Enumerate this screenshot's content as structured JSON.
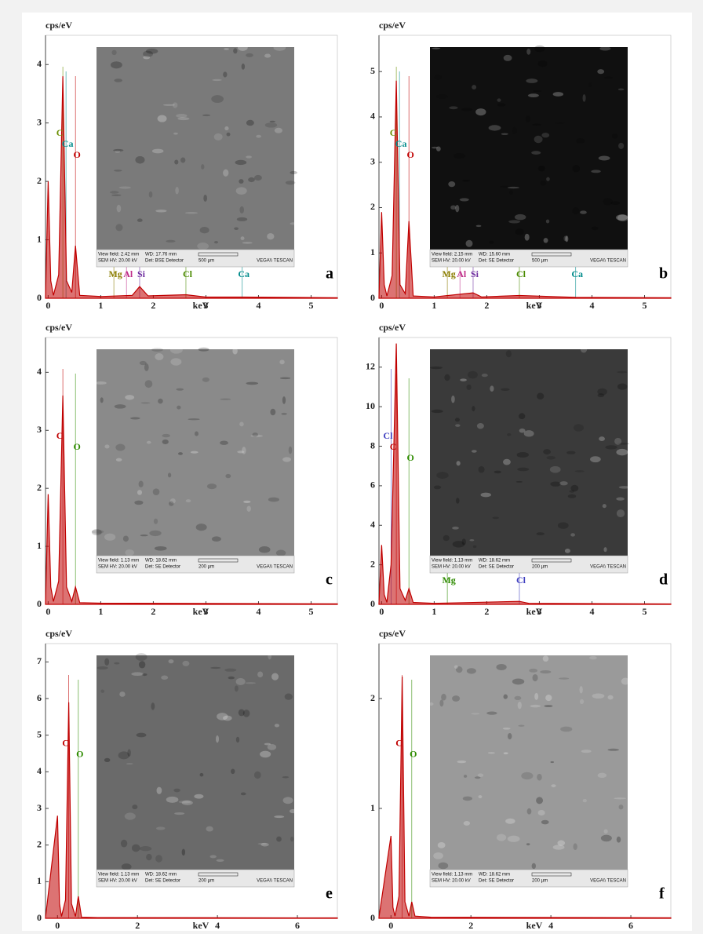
{
  "chart_data": [
    {
      "type": "line",
      "panel": "a",
      "y_label": "cps/eV",
      "x_label": "keV",
      "color": "#c00000",
      "xlim": [
        -0.05,
        5.5
      ],
      "xticks": [
        0,
        1,
        2,
        3,
        4,
        5
      ],
      "ylim": [
        0,
        4.5
      ],
      "yticks": [
        0,
        1,
        2,
        3,
        4
      ],
      "x": [
        -0.05,
        0.0,
        0.05,
        0.1,
        0.2,
        0.28,
        0.35,
        0.45,
        0.52,
        0.6,
        1.0,
        1.6,
        1.74,
        1.9,
        2.62,
        3.0,
        3.69,
        5.5
      ],
      "values": [
        0.02,
        2.0,
        0.3,
        0.05,
        0.4,
        3.8,
        0.3,
        0.1,
        0.9,
        0.05,
        0.03,
        0.05,
        0.2,
        0.04,
        0.06,
        0.02,
        0.02,
        0.01
      ],
      "elements": [
        {
          "label": "C",
          "x": 0.28,
          "color": "#6a8f00"
        },
        {
          "label": "Ca",
          "x": 0.34,
          "color": "#008b8b"
        },
        {
          "label": "O",
          "x": 0.52,
          "color": "#c00000"
        },
        {
          "label": "Mg",
          "x": 1.25,
          "color": "#8b7d00"
        },
        {
          "label": "Al",
          "x": 1.49,
          "color": "#c0308a"
        },
        {
          "label": "Si",
          "x": 1.74,
          "color": "#7030a0"
        },
        {
          "label": "Cl",
          "x": 2.62,
          "color": "#4a8a00"
        },
        {
          "label": "Ca",
          "x": 3.69,
          "color": "#008b8b"
        }
      ],
      "sem": {
        "color": "#7a7a7a",
        "view_field": "View field: 2.42 mm",
        "wd": "WD: 17.76 mm",
        "hv": "SEM HV: 20.00 kV",
        "det": "Det: BSE Detector",
        "scale": "500 µm",
        "brand": "VEGA\\\\ TESCAN"
      }
    },
    {
      "type": "line",
      "panel": "b",
      "y_label": "cps/eV",
      "x_label": "keV",
      "color": "#c00000",
      "xlim": [
        -0.05,
        5.5
      ],
      "xticks": [
        0,
        1,
        2,
        3,
        4,
        5
      ],
      "ylim": [
        0,
        5.8
      ],
      "yticks": [
        0,
        1,
        2,
        3,
        4,
        5
      ],
      "x": [
        -0.05,
        0.0,
        0.05,
        0.1,
        0.2,
        0.28,
        0.35,
        0.45,
        0.52,
        0.6,
        1.0,
        1.74,
        1.9,
        2.62,
        3.69,
        5.5
      ],
      "values": [
        0.02,
        1.9,
        0.3,
        0.05,
        0.5,
        4.8,
        0.3,
        0.1,
        1.7,
        0.05,
        0.03,
        0.12,
        0.03,
        0.06,
        0.02,
        0.01
      ],
      "elements": [
        {
          "label": "C",
          "x": 0.28,
          "color": "#6a8f00"
        },
        {
          "label": "Ca",
          "x": 0.34,
          "color": "#008b8b"
        },
        {
          "label": "O",
          "x": 0.52,
          "color": "#c00000"
        },
        {
          "label": "Mg",
          "x": 1.25,
          "color": "#8b7d00"
        },
        {
          "label": "Al",
          "x": 1.49,
          "color": "#c0308a"
        },
        {
          "label": "Si",
          "x": 1.74,
          "color": "#7030a0"
        },
        {
          "label": "Cl",
          "x": 2.62,
          "color": "#4a8a00"
        },
        {
          "label": "Ca",
          "x": 3.69,
          "color": "#008b8b"
        }
      ],
      "sem": {
        "color": "#101010",
        "view_field": "View field: 2.15 mm",
        "wd": "WD: 15.60 mm",
        "hv": "SEM HV: 20.00 kV",
        "det": "Det: SE Detector",
        "scale": "500 µm",
        "brand": "VEGA\\\\ TESCAN"
      }
    },
    {
      "type": "line",
      "panel": "c",
      "y_label": "cps/eV",
      "x_label": "keV",
      "color": "#c00000",
      "xlim": [
        -0.05,
        5.5
      ],
      "xticks": [
        0,
        1,
        2,
        3,
        4,
        5
      ],
      "ylim": [
        0,
        4.6
      ],
      "yticks": [
        0,
        1,
        2,
        3,
        4
      ],
      "x": [
        -0.05,
        0.0,
        0.05,
        0.1,
        0.2,
        0.28,
        0.35,
        0.45,
        0.52,
        0.6,
        1.0,
        5.5
      ],
      "values": [
        0.02,
        1.9,
        0.3,
        0.05,
        0.4,
        3.6,
        0.3,
        0.05,
        0.3,
        0.03,
        0.02,
        0.01
      ],
      "elements": [
        {
          "label": "C",
          "x": 0.28,
          "color": "#c00000"
        },
        {
          "label": "O",
          "x": 0.52,
          "color": "#2e8b00"
        }
      ],
      "sem": {
        "color": "#8a8a8a",
        "view_field": "View field: 1.13 mm",
        "wd": "WD: 18.62 mm",
        "hv": "SEM HV: 20.00 kV",
        "det": "Det: SE Detector",
        "scale": "200 µm",
        "brand": "VEGA\\\\ TESCAN"
      }
    },
    {
      "type": "line",
      "panel": "d",
      "y_label": "cps/eV",
      "x_label": "keV",
      "color": "#c00000",
      "xlim": [
        -0.05,
        5.5
      ],
      "xticks": [
        0,
        1,
        2,
        3,
        4,
        5
      ],
      "ylim": [
        0,
        13.5
      ],
      "yticks": [
        0,
        2,
        4,
        6,
        8,
        10,
        12
      ],
      "x": [
        -0.05,
        0.0,
        0.05,
        0.1,
        0.18,
        0.28,
        0.35,
        0.45,
        0.52,
        0.6,
        1.0,
        2.62,
        2.8,
        5.5
      ],
      "values": [
        0.05,
        3.0,
        0.5,
        0.1,
        2.0,
        13.2,
        0.8,
        0.2,
        0.8,
        0.1,
        0.05,
        0.15,
        0.05,
        0.02
      ],
      "elements": [
        {
          "label": "Cl",
          "x": 0.18,
          "color": "#4040c0"
        },
        {
          "label": "C",
          "x": 0.28,
          "color": "#c00000"
        },
        {
          "label": "O",
          "x": 0.52,
          "color": "#2e8b00"
        },
        {
          "label": "Mg",
          "x": 1.25,
          "color": "#2e8b00"
        },
        {
          "label": "Cl",
          "x": 2.62,
          "color": "#4040c0"
        }
      ],
      "sem": {
        "color": "#3a3a3a",
        "view_field": "View field: 1.13 mm",
        "wd": "WD: 18.62 mm",
        "hv": "SEM HV: 20.00 kV",
        "det": "Det: SE Detector",
        "scale": "200 µm",
        "brand": "VEGA\\\\ TESCAN"
      }
    },
    {
      "type": "line",
      "panel": "e",
      "y_label": "cps/eV",
      "x_label": "keV",
      "color": "#c00000",
      "xlim": [
        -0.3,
        7
      ],
      "xticks": [
        0,
        2,
        4,
        6
      ],
      "ylim": [
        0,
        7.5
      ],
      "yticks": [
        0,
        1,
        2,
        3,
        4,
        5,
        6,
        7
      ],
      "x": [
        -0.3,
        0.0,
        0.05,
        0.1,
        0.2,
        0.28,
        0.35,
        0.45,
        0.52,
        0.6,
        1.0,
        7
      ],
      "values": [
        0.02,
        2.8,
        0.4,
        0.05,
        0.5,
        5.9,
        0.4,
        0.05,
        0.6,
        0.03,
        0.02,
        0.01
      ],
      "elements": [
        {
          "label": "C",
          "x": 0.28,
          "color": "#c00000"
        },
        {
          "label": "O",
          "x": 0.52,
          "color": "#2e8b00"
        }
      ],
      "sem": {
        "color": "#6a6a6a",
        "view_field": "View field: 1.13 mm",
        "wd": "WD: 18.62 mm",
        "hv": "SEM HV: 20.00 kV",
        "det": "Det: SE Detector",
        "scale": "200 µm",
        "brand": "VEGA\\\\ TESCAN"
      }
    },
    {
      "type": "line",
      "panel": "f",
      "y_label": "cps/eV",
      "x_label": "keV",
      "color": "#c00000",
      "xlim": [
        -0.3,
        7
      ],
      "xticks": [
        0,
        2,
        4,
        6
      ],
      "ylim": [
        0,
        2.5
      ],
      "yticks": [
        0,
        1,
        2
      ],
      "x": [
        -0.3,
        0.0,
        0.05,
        0.1,
        0.2,
        0.28,
        0.35,
        0.45,
        0.52,
        0.6,
        1.0,
        7
      ],
      "values": [
        0.01,
        0.75,
        0.1,
        0.02,
        0.2,
        2.2,
        0.15,
        0.02,
        0.15,
        0.02,
        0.01,
        0.005
      ],
      "elements": [
        {
          "label": "C",
          "x": 0.28,
          "color": "#c00000"
        },
        {
          "label": "O",
          "x": 0.52,
          "color": "#2e8b00"
        }
      ],
      "sem": {
        "color": "#9a9a9a",
        "view_field": "View field: 1.13 mm",
        "wd": "WD: 18.62 mm",
        "hv": "SEM HV: 20.00 kV",
        "det": "Det: SE Detector",
        "scale": "200 µm",
        "brand": "VEGA\\\\ TESCAN"
      }
    }
  ]
}
